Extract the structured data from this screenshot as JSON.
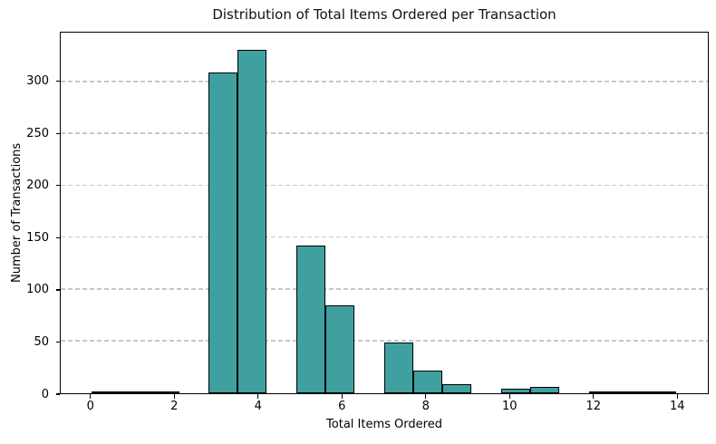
{
  "chart_data": {
    "type": "bar",
    "subtype": "histogram",
    "title": "Distribution of Total Items Ordered per Transaction",
    "xlabel": "Total Items Ordered",
    "ylabel": "Number of Transactions",
    "legend": null,
    "grid": "horizontal-dashed",
    "grid_color": "#c7c7c7",
    "bar_fill_color": "#40a0a0",
    "bar_edge_color": "#000000",
    "background_color": "#ffffff",
    "xlim": [
      -0.73,
      14.75
    ],
    "ylim": [
      0,
      347.6
    ],
    "xticks": [
      0,
      2,
      4,
      6,
      8,
      10,
      12,
      14
    ],
    "yticks": [
      0,
      50,
      100,
      150,
      200,
      250,
      300
    ],
    "bin_width": 0.7,
    "bins": [
      {
        "left": 0.0,
        "right": 0.7,
        "count": 1
      },
      {
        "left": 0.7,
        "right": 1.4,
        "count": 2
      },
      {
        "left": 1.4,
        "right": 2.1,
        "count": 2
      },
      {
        "left": 2.1,
        "right": 2.8,
        "count": 0
      },
      {
        "left": 2.8,
        "right": 3.5,
        "count": 309
      },
      {
        "left": 3.5,
        "right": 4.2,
        "count": 331
      },
      {
        "left": 4.2,
        "right": 4.9,
        "count": 0
      },
      {
        "left": 4.9,
        "right": 5.6,
        "count": 142
      },
      {
        "left": 5.6,
        "right": 6.3,
        "count": 85
      },
      {
        "left": 6.3,
        "right": 7.0,
        "count": 0
      },
      {
        "left": 7.0,
        "right": 7.7,
        "count": 49
      },
      {
        "left": 7.7,
        "right": 8.4,
        "count": 22
      },
      {
        "left": 8.4,
        "right": 9.1,
        "count": 9
      },
      {
        "left": 9.1,
        "right": 9.8,
        "count": 0
      },
      {
        "left": 9.8,
        "right": 10.5,
        "count": 4
      },
      {
        "left": 10.5,
        "right": 11.2,
        "count": 6
      },
      {
        "left": 11.2,
        "right": 11.9,
        "count": 0
      },
      {
        "left": 11.9,
        "right": 12.6,
        "count": 2
      },
      {
        "left": 12.6,
        "right": 13.3,
        "count": 1
      },
      {
        "left": 13.3,
        "right": 14.0,
        "count": 2
      }
    ]
  }
}
